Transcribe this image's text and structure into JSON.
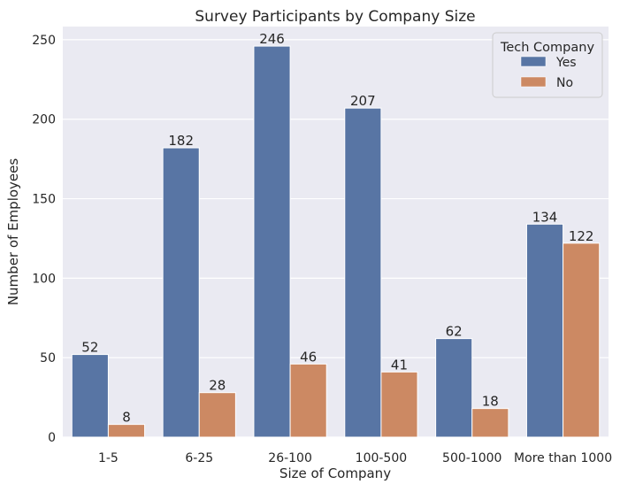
{
  "chart_data": {
    "type": "bar",
    "title": "Survey Participants by Company Size",
    "xlabel": "Size of Company",
    "ylabel": "Number of Employees",
    "categories": [
      "1-5",
      "6-25",
      "26-100",
      "100-500",
      "500-1000",
      "More than 1000"
    ],
    "series": [
      {
        "name": "Yes",
        "color": "#5875a4",
        "values": [
          52,
          182,
          246,
          207,
          62,
          134
        ]
      },
      {
        "name": "No",
        "color": "#cc8963",
        "values": [
          8,
          28,
          46,
          41,
          18,
          122
        ]
      }
    ],
    "ylim": [
      0,
      258.3
    ],
    "yticks": [
      0,
      50,
      100,
      150,
      200,
      250
    ],
    "legend": {
      "title": "Tech Company",
      "position": "upper-right"
    },
    "grid": true,
    "background": "#eaeaf2"
  }
}
